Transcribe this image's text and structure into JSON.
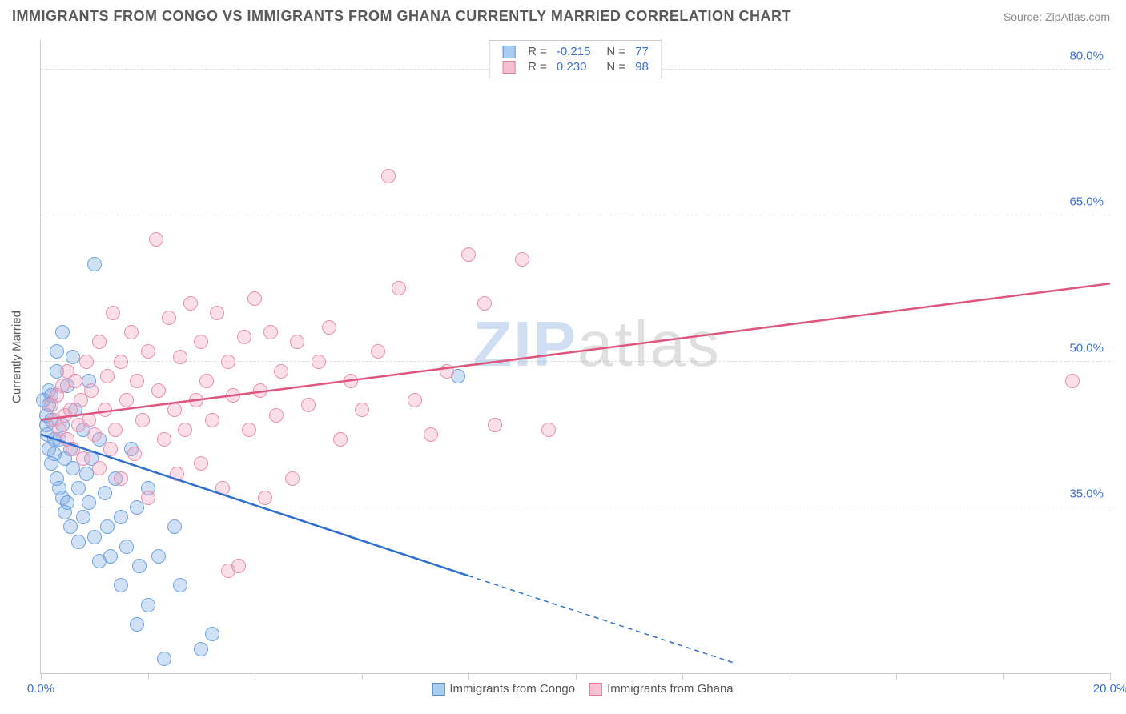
{
  "title": "IMMIGRANTS FROM CONGO VS IMMIGRANTS FROM GHANA CURRENTLY MARRIED CORRELATION CHART",
  "source": "Source: ZipAtlas.com",
  "yaxis_title": "Currently Married",
  "watermark_a": "ZIP",
  "watermark_b": "atlas",
  "chart": {
    "type": "scatter",
    "xlim": [
      0,
      20
    ],
    "ylim": [
      18,
      83
    ],
    "xticks": [
      0,
      2,
      4,
      6,
      8,
      10,
      12,
      14,
      16,
      18,
      20
    ],
    "xlabels_shown": {
      "0": "0.0%",
      "20": "20.0%"
    },
    "yticks": [
      35,
      50,
      65,
      80
    ],
    "ylabels": {
      "35": "35.0%",
      "50": "50.0%",
      "65": "65.0%",
      "80": "80.0%"
    },
    "background_color": "#ffffff",
    "grid_color": "#dddddd",
    "axis_color": "#cccccc",
    "point_radius": 9,
    "point_stroke_width": 1.5,
    "series": [
      {
        "name": "Immigrants from Congo",
        "fill": "rgba(120,170,230,0.35)",
        "stroke": "#6fa3e0",
        "swatch_fill": "#a9cdf0",
        "swatch_stroke": "#5b8fd0",
        "line_color": "#2f6fd0",
        "R": "-0.215",
        "N": "77",
        "regression": {
          "x1": 0,
          "y1": 42.5,
          "x2": 8,
          "y2": 28,
          "extrap_x2": 13,
          "extrap_y2": 19
        },
        "points": [
          [
            0.05,
            46
          ],
          [
            0.1,
            44.5
          ],
          [
            0.1,
            43.5
          ],
          [
            0.12,
            42.5
          ],
          [
            0.15,
            45.5
          ],
          [
            0.15,
            47
          ],
          [
            0.15,
            41
          ],
          [
            0.2,
            39.5
          ],
          [
            0.2,
            44
          ],
          [
            0.2,
            46.5
          ],
          [
            0.25,
            40.5
          ],
          [
            0.25,
            42
          ],
          [
            0.3,
            49
          ],
          [
            0.3,
            51
          ],
          [
            0.3,
            38
          ],
          [
            0.35,
            42
          ],
          [
            0.35,
            37
          ],
          [
            0.4,
            53
          ],
          [
            0.4,
            43.5
          ],
          [
            0.4,
            36
          ],
          [
            0.45,
            40
          ],
          [
            0.45,
            34.5
          ],
          [
            0.5,
            47.5
          ],
          [
            0.5,
            35.5
          ],
          [
            0.55,
            41
          ],
          [
            0.55,
            33
          ],
          [
            0.6,
            50.5
          ],
          [
            0.6,
            39
          ],
          [
            0.65,
            45
          ],
          [
            0.7,
            37
          ],
          [
            0.7,
            31.5
          ],
          [
            0.8,
            43
          ],
          [
            0.8,
            34
          ],
          [
            0.85,
            38.5
          ],
          [
            0.9,
            48
          ],
          [
            0.9,
            35.5
          ],
          [
            0.95,
            40
          ],
          [
            1.0,
            60
          ],
          [
            1.0,
            32
          ],
          [
            1.1,
            42
          ],
          [
            1.1,
            29.5
          ],
          [
            1.2,
            36.5
          ],
          [
            1.25,
            33
          ],
          [
            1.3,
            30
          ],
          [
            1.4,
            38
          ],
          [
            1.5,
            34
          ],
          [
            1.5,
            27
          ],
          [
            1.6,
            31
          ],
          [
            1.7,
            41
          ],
          [
            1.8,
            35
          ],
          [
            1.8,
            23
          ],
          [
            1.85,
            29
          ],
          [
            2.0,
            37
          ],
          [
            2.0,
            25
          ],
          [
            2.2,
            30
          ],
          [
            2.3,
            19.5
          ],
          [
            2.5,
            33
          ],
          [
            2.6,
            27
          ],
          [
            3.0,
            20.5
          ],
          [
            3.2,
            22
          ],
          [
            7.8,
            48.5
          ]
        ]
      },
      {
        "name": "Immigrants from Ghana",
        "fill": "rgba(240,160,190,0.35)",
        "stroke": "#e890b0",
        "swatch_fill": "#f5c0d2",
        "swatch_stroke": "#e07da0",
        "line_color": "#e0557e",
        "R": "0.230",
        "N": "98",
        "regression": {
          "x1": 0,
          "y1": 44,
          "x2": 20,
          "y2": 58
        },
        "points": [
          [
            0.2,
            45.5
          ],
          [
            0.25,
            44
          ],
          [
            0.3,
            46.5
          ],
          [
            0.35,
            43
          ],
          [
            0.4,
            47.5
          ],
          [
            0.45,
            44.5
          ],
          [
            0.5,
            49
          ],
          [
            0.5,
            42
          ],
          [
            0.55,
            45
          ],
          [
            0.6,
            41
          ],
          [
            0.65,
            48
          ],
          [
            0.7,
            43.5
          ],
          [
            0.75,
            46
          ],
          [
            0.8,
            40
          ],
          [
            0.85,
            50
          ],
          [
            0.9,
            44
          ],
          [
            0.95,
            47
          ],
          [
            1.0,
            42.5
          ],
          [
            1.1,
            52
          ],
          [
            1.1,
            39
          ],
          [
            1.2,
            45
          ],
          [
            1.25,
            48.5
          ],
          [
            1.3,
            41
          ],
          [
            1.35,
            55
          ],
          [
            1.4,
            43
          ],
          [
            1.5,
            50
          ],
          [
            1.5,
            38
          ],
          [
            1.6,
            46
          ],
          [
            1.7,
            53
          ],
          [
            1.75,
            40.5
          ],
          [
            1.8,
            48
          ],
          [
            1.9,
            44
          ],
          [
            2.0,
            51
          ],
          [
            2.0,
            36
          ],
          [
            2.15,
            62.5
          ],
          [
            2.2,
            47
          ],
          [
            2.3,
            42
          ],
          [
            2.4,
            54.5
          ],
          [
            2.5,
            45
          ],
          [
            2.55,
            38.5
          ],
          [
            2.6,
            50.5
          ],
          [
            2.7,
            43
          ],
          [
            2.8,
            56
          ],
          [
            2.9,
            46
          ],
          [
            3.0,
            52
          ],
          [
            3.0,
            39.5
          ],
          [
            3.1,
            48
          ],
          [
            3.2,
            44
          ],
          [
            3.3,
            55
          ],
          [
            3.4,
            37
          ],
          [
            3.5,
            50
          ],
          [
            3.5,
            28.5
          ],
          [
            3.6,
            46.5
          ],
          [
            3.7,
            29
          ],
          [
            3.8,
            52.5
          ],
          [
            3.9,
            43
          ],
          [
            4.0,
            56.5
          ],
          [
            4.1,
            47
          ],
          [
            4.2,
            36
          ],
          [
            4.3,
            53
          ],
          [
            4.4,
            44.5
          ],
          [
            4.5,
            49
          ],
          [
            4.7,
            38
          ],
          [
            4.8,
            52
          ],
          [
            5.0,
            45.5
          ],
          [
            5.2,
            50
          ],
          [
            5.4,
            53.5
          ],
          [
            5.6,
            42
          ],
          [
            5.8,
            48
          ],
          [
            6.0,
            45
          ],
          [
            6.3,
            51
          ],
          [
            6.5,
            69
          ],
          [
            6.7,
            57.5
          ],
          [
            7.0,
            46
          ],
          [
            7.3,
            42.5
          ],
          [
            7.6,
            49
          ],
          [
            8.0,
            61
          ],
          [
            8.3,
            56
          ],
          [
            8.5,
            43.5
          ],
          [
            9.0,
            60.5
          ],
          [
            9.5,
            43
          ],
          [
            19.3,
            48
          ]
        ]
      }
    ]
  },
  "legend_top_labels": {
    "R": "R =",
    "N": "N ="
  },
  "legend_bottom": [
    {
      "label": "Immigrants from Congo",
      "fill": "#a9cdf0",
      "stroke": "#5b8fd0"
    },
    {
      "label": "Immigrants from Ghana",
      "fill": "#f5c0d2",
      "stroke": "#e07da0"
    }
  ]
}
